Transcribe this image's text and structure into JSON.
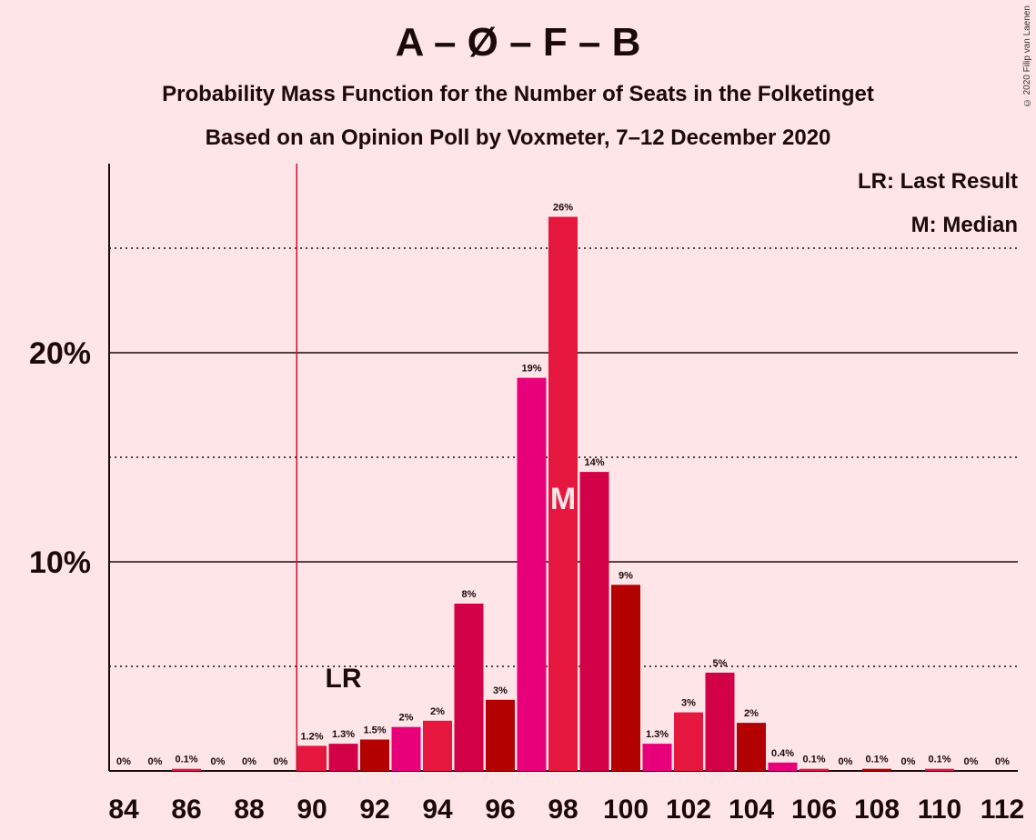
{
  "chart_data": {
    "type": "bar",
    "title": "A – Ø – F – B",
    "subtitle": "Probability Mass Function for the Number of Seats in the Folketinget",
    "subtitle2": "Based on an Opinion Poll by Voxmeter, 7–12 December 2020",
    "copyright": "© 2020 Filip van Laenen",
    "legend": [
      "LR: Last Result",
      "M: Median"
    ],
    "x": [
      84,
      85,
      86,
      87,
      88,
      89,
      90,
      91,
      92,
      93,
      94,
      95,
      96,
      97,
      98,
      99,
      100,
      101,
      102,
      103,
      104,
      105,
      106,
      107,
      108,
      109,
      110,
      111,
      112
    ],
    "values": [
      0,
      0,
      0.1,
      0,
      0,
      0,
      1.2,
      1.3,
      1.5,
      2.1,
      2.4,
      8.0,
      3.4,
      18.8,
      26.5,
      14.3,
      8.9,
      1.3,
      2.8,
      4.7,
      2.3,
      0.4,
      0.1,
      0,
      0.1,
      0,
      0.1,
      0,
      0
    ],
    "labels": [
      "0%",
      "0%",
      "0.1%",
      "0%",
      "0%",
      "0%",
      "1.2%",
      "1.3%",
      "1.5%",
      "2%",
      "2%",
      "8%",
      "3%",
      "19%",
      "26%",
      "14%",
      "9%",
      "1.3%",
      "3%",
      "5%",
      "2%",
      "0.4%",
      "0.1%",
      "0%",
      "0.1%",
      "0%",
      "0.1%",
      "0%",
      "0%"
    ],
    "xtick_labels": [
      "84",
      "86",
      "88",
      "90",
      "92",
      "94",
      "96",
      "98",
      "100",
      "102",
      "104",
      "106",
      "108",
      "110",
      "112"
    ],
    "ytick_labels": [
      "10%",
      "20%"
    ],
    "ylim": [
      0,
      29
    ],
    "last_result": 90,
    "last_result_label": "LR",
    "median": 98,
    "median_label": "M",
    "bar_colors": [
      "#B30000",
      "#E8007A",
      "#E5173F",
      "#D10047"
    ],
    "grid": "solid major lines at 10% and 20%, dotted minor lines at 5%, 15%, 25%"
  }
}
